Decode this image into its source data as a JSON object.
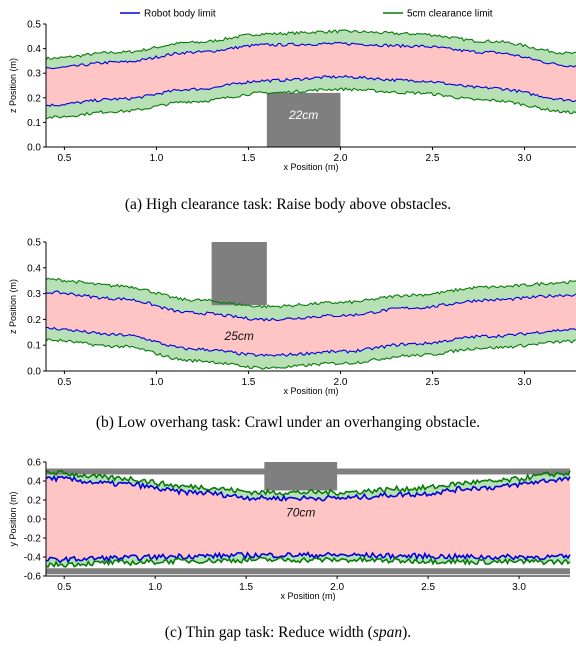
{
  "chart_data": [
    {
      "type": "area",
      "panel": "a",
      "legend": {
        "placement": "top",
        "entries": [
          "Robot body limit",
          "5cm clearance limit"
        ]
      },
      "xlabel": "x Position (m)",
      "ylabel": "z Position (m)",
      "xlim": [
        0.4,
        3.28
      ],
      "ylim": [
        0.0,
        0.5
      ],
      "xticks": [
        "0.5",
        "1.0",
        "1.5",
        "2.0",
        "2.5",
        "3.0"
      ],
      "yticks": [
        "0.0",
        "0.1",
        "0.2",
        "0.3",
        "0.4",
        "0.5"
      ],
      "x": [
        0.4,
        0.8,
        1.2,
        1.6,
        2.0,
        2.4,
        2.8,
        3.28
      ],
      "series": [
        {
          "name": "5cm clearance limit",
          "color": "#0a7a0a",
          "values": [
            0.36,
            0.385,
            0.425,
            0.46,
            0.47,
            0.46,
            0.43,
            0.38
          ]
        },
        {
          "name": "Robot body limit",
          "color": "#0000dd",
          "values": [
            0.32,
            0.345,
            0.385,
            0.415,
            0.42,
            0.41,
            0.385,
            0.33
          ]
        },
        {
          "name": "Robot body limit",
          "color": "#0000dd",
          "values": [
            0.17,
            0.195,
            0.235,
            0.27,
            0.285,
            0.27,
            0.24,
            0.19
          ]
        },
        {
          "name": "5cm clearance limit",
          "color": "#0a7a0a",
          "values": [
            0.12,
            0.145,
            0.185,
            0.22,
            0.235,
            0.22,
            0.19,
            0.14
          ]
        }
      ],
      "obstacle": {
        "x": [
          1.6,
          2.0
        ],
        "y": [
          0.0,
          0.22
        ],
        "label": "22cm",
        "label_x": 1.8,
        "label_y": 0.13,
        "label_color": "#ffffff"
      },
      "noise": 0.006,
      "caption": "(a) High clearance task: Raise body above obstacles."
    },
    {
      "type": "area",
      "panel": "b",
      "xlabel": "x Position (m)",
      "ylabel": "z Position (m)",
      "xlim": [
        0.4,
        3.28
      ],
      "ylim": [
        0.0,
        0.5
      ],
      "xticks": [
        "0.5",
        "1.0",
        "1.5",
        "2.0",
        "2.5",
        "3.0"
      ],
      "yticks": [
        "0.0",
        "0.1",
        "0.2",
        "0.3",
        "0.4",
        "0.5"
      ],
      "x": [
        0.4,
        0.8,
        1.2,
        1.6,
        2.0,
        2.4,
        2.8,
        3.28
      ],
      "series": [
        {
          "name": "5cm clearance limit",
          "color": "#0a7a0a",
          "values": [
            0.355,
            0.33,
            0.275,
            0.25,
            0.265,
            0.295,
            0.325,
            0.345
          ]
        },
        {
          "name": "Robot body limit",
          "color": "#0000dd",
          "values": [
            0.305,
            0.28,
            0.225,
            0.2,
            0.215,
            0.245,
            0.275,
            0.295
          ]
        },
        {
          "name": "Robot body limit",
          "color": "#0000dd",
          "values": [
            0.165,
            0.14,
            0.085,
            0.06,
            0.075,
            0.105,
            0.135,
            0.16
          ]
        },
        {
          "name": "5cm clearance limit",
          "color": "#0a7a0a",
          "values": [
            0.12,
            0.095,
            0.04,
            0.012,
            0.03,
            0.06,
            0.09,
            0.115
          ]
        }
      ],
      "obstacle": {
        "x": [
          1.3,
          1.6
        ],
        "y": [
          0.255,
          0.5
        ],
        "label": "25cm",
        "label_x": 1.45,
        "label_y": 0.135,
        "label_color": "#111111"
      },
      "noise": 0.006,
      "caption": "(b) Low overhang task: Crawl under an overhanging obstacle."
    },
    {
      "type": "area",
      "panel": "c",
      "xlabel": "x Position (m)",
      "ylabel": "y Position (m)",
      "xlim": [
        0.4,
        3.28
      ],
      "ylim": [
        -0.6,
        0.6
      ],
      "xticks": [
        "0.5",
        "1.0",
        "1.5",
        "2.0",
        "2.5",
        "3.0"
      ],
      "yticks": [
        "-0.6",
        "-0.4",
        "-0.2",
        "0.0",
        "0.2",
        "0.4",
        "0.6"
      ],
      "x": [
        0.4,
        0.8,
        1.2,
        1.6,
        2.0,
        2.4,
        2.8,
        3.28
      ],
      "series": [
        {
          "name": "5cm clearance limit",
          "color": "#0a7a0a",
          "values": [
            0.49,
            0.43,
            0.34,
            0.28,
            0.28,
            0.32,
            0.39,
            0.48
          ]
        },
        {
          "name": "Robot body limit",
          "color": "#0000dd",
          "values": [
            0.43,
            0.37,
            0.28,
            0.22,
            0.22,
            0.26,
            0.33,
            0.42
          ]
        },
        {
          "name": "Robot body limit",
          "color": "#0000dd",
          "values": [
            -0.43,
            -0.41,
            -0.39,
            -0.38,
            -0.38,
            -0.39,
            -0.4,
            -0.4
          ]
        },
        {
          "name": "5cm clearance limit",
          "color": "#0a7a0a",
          "values": [
            -0.48,
            -0.46,
            -0.44,
            -0.43,
            -0.43,
            -0.44,
            -0.45,
            -0.45
          ]
        }
      ],
      "obstacle": {
        "x": [
          1.6,
          2.0
        ],
        "y": [
          0.3,
          0.6
        ],
        "label": "70cm",
        "label_x": 1.8,
        "label_y": 0.07,
        "label_color": "#111111"
      },
      "walls": [
        0.5,
        -0.55
      ],
      "noise": 0.028,
      "caption_parts": [
        "(c) Thin gap task: Reduce width (",
        "span",
        ")."
      ]
    }
  ]
}
